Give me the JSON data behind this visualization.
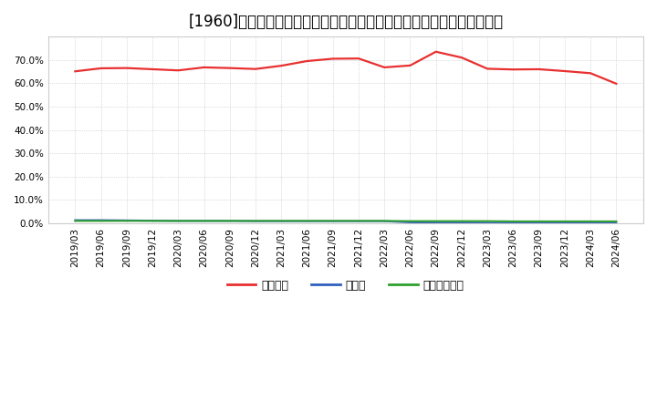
{
  "title": "[1960]　自己資本、のれん、繰延税金資産の総資産に対する比率の推移",
  "x_labels": [
    "2019/03",
    "2019/06",
    "2019/09",
    "2019/12",
    "2020/03",
    "2020/06",
    "2020/09",
    "2020/12",
    "2021/03",
    "2021/06",
    "2021/09",
    "2021/12",
    "2022/03",
    "2022/06",
    "2022/09",
    "2022/12",
    "2023/03",
    "2023/06",
    "2023/09",
    "2023/12",
    "2024/03",
    "2024/06"
  ],
  "equity_ratio": [
    0.651,
    0.664,
    0.665,
    0.66,
    0.655,
    0.668,
    0.665,
    0.661,
    0.675,
    0.695,
    0.705,
    0.706,
    0.668,
    0.676,
    0.735,
    0.71,
    0.662,
    0.659,
    0.66,
    0.652,
    0.643,
    0.598
  ],
  "goodwill_ratio": [
    0.013,
    0.013,
    0.012,
    0.011,
    0.01,
    0.01,
    0.01,
    0.009,
    0.009,
    0.009,
    0.009,
    0.009,
    0.009,
    0.004,
    0.003,
    0.003,
    0.002,
    0.002,
    0.002,
    0.002,
    0.002,
    0.002
  ],
  "deferred_tax_ratio": [
    0.01,
    0.01,
    0.01,
    0.01,
    0.01,
    0.01,
    0.01,
    0.01,
    0.01,
    0.01,
    0.01,
    0.01,
    0.01,
    0.009,
    0.009,
    0.009,
    0.009,
    0.008,
    0.008,
    0.008,
    0.008,
    0.008
  ],
  "equity_color": "#e83030",
  "goodwill_color": "#3060c0",
  "deferred_tax_color": "#30a030",
  "bg_color": "#ffffff",
  "plot_bg_color": "#ffffff",
  "grid_color": "#aaaaaa",
  "ylim": [
    0.0,
    0.8
  ],
  "yticks": [
    0.0,
    0.1,
    0.2,
    0.3,
    0.4,
    0.5,
    0.6,
    0.7
  ],
  "legend_labels": [
    "自己資本",
    "のれん",
    "繰延税金資産"
  ],
  "title_fontsize": 12,
  "tick_fontsize": 7.5,
  "legend_fontsize": 9
}
